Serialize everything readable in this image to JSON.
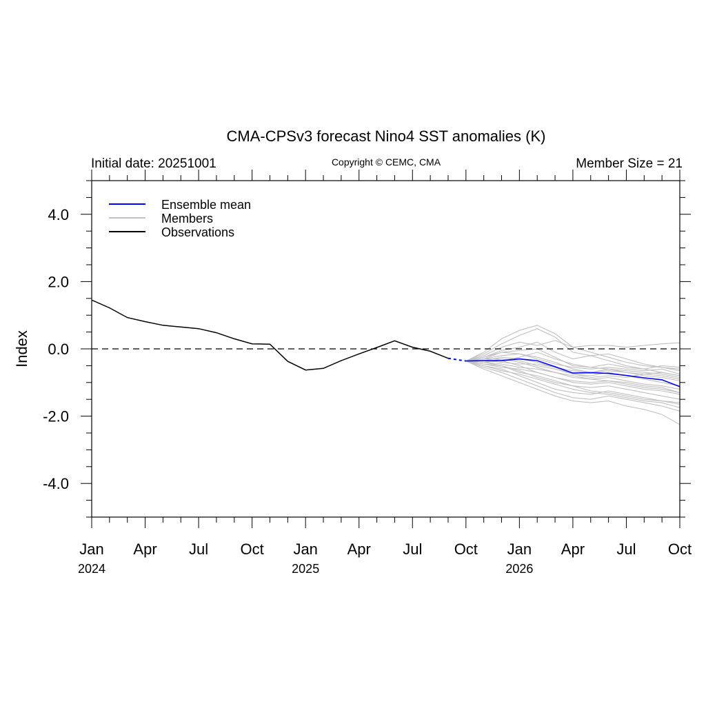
{
  "chart_data": {
    "type": "line",
    "title": "CMA-CPSv3 forecast Nino4 SST anomalies (K)",
    "left_subtitle": "Initial date: 20251001",
    "center_subtitle": "Copyright © CEMC, CMA",
    "right_subtitle": "Member Size = 21",
    "ylabel": "Index",
    "xlabel": "",
    "ylim": [
      -5,
      5
    ],
    "xlim": [
      0,
      33
    ],
    "y_ticks": [
      {
        "value": 4,
        "label": "4.0"
      },
      {
        "value": 2,
        "label": "2.0"
      },
      {
        "value": 0,
        "label": "0.0"
      },
      {
        "value": -2,
        "label": "-2.0"
      },
      {
        "value": -4,
        "label": "-4.0"
      }
    ],
    "x_ticks": [
      {
        "month": 0,
        "label": "Jan"
      },
      {
        "month": 3,
        "label": "Apr"
      },
      {
        "month": 6,
        "label": "Jul"
      },
      {
        "month": 9,
        "label": "Oct"
      },
      {
        "month": 12,
        "label": "Jan"
      },
      {
        "month": 15,
        "label": "Apr"
      },
      {
        "month": 18,
        "label": "Jul"
      },
      {
        "month": 21,
        "label": "Oct"
      },
      {
        "month": 24,
        "label": "Jan"
      },
      {
        "month": 27,
        "label": "Apr"
      },
      {
        "month": 30,
        "label": "Jul"
      },
      {
        "month": 33,
        "label": "Oct"
      }
    ],
    "year_labels": [
      {
        "month": 0,
        "label": "2024"
      },
      {
        "month": 12,
        "label": "2025"
      },
      {
        "month": 24,
        "label": "2026"
      }
    ],
    "zero_line": {
      "value": 0,
      "style": "dashed"
    },
    "legend": {
      "placement": "top-left",
      "items": [
        {
          "label": "Ensemble mean",
          "color": "#0000ff"
        },
        {
          "label": "Members",
          "color": "#c0c0c0"
        },
        {
          "label": "Observations",
          "color": "#000000"
        }
      ]
    },
    "observations": {
      "name": "Observations",
      "color": "#000000",
      "x": [
        0,
        1,
        2,
        3,
        4,
        5,
        6,
        7,
        8,
        9,
        10,
        11,
        12,
        13,
        14,
        15,
        16,
        17,
        18,
        19,
        20
      ],
      "y": [
        1.45,
        1.22,
        0.93,
        0.81,
        0.7,
        0.65,
        0.6,
        0.48,
        0.3,
        0.15,
        0.14,
        -0.37,
        -0.63,
        -0.58,
        -0.35,
        -0.15,
        0.04,
        0.24,
        0.05,
        -0.07,
        -0.28
      ]
    },
    "observation_link": {
      "color": "#0000ff",
      "style": "dashed",
      "x": [
        20,
        21
      ],
      "y": [
        -0.28,
        -0.36
      ]
    },
    "ensemble_mean": {
      "name": "Ensemble mean",
      "color": "#0000ff",
      "x": [
        21,
        22,
        23,
        24,
        25,
        26,
        27,
        28,
        29,
        30,
        31,
        32,
        33
      ],
      "y": [
        -0.36,
        -0.35,
        -0.35,
        -0.3,
        -0.35,
        -0.53,
        -0.72,
        -0.71,
        -0.73,
        -0.79,
        -0.86,
        -0.92,
        -1.12
      ]
    },
    "members": {
      "name": "Members",
      "color": "#c0c0c0",
      "x": [
        21,
        22,
        23,
        24,
        25,
        26,
        27,
        28,
        29,
        30,
        31,
        32,
        33
      ],
      "series": [
        [
          -0.36,
          -0.1,
          0.3,
          0.55,
          0.7,
          0.45,
          0.05,
          -0.1,
          -0.25,
          -0.4,
          -0.5,
          -0.55,
          -0.65
        ],
        [
          -0.36,
          -0.15,
          0.15,
          0.4,
          0.6,
          0.35,
          -0.1,
          -0.2,
          -0.35,
          -0.5,
          -0.6,
          -0.7,
          -0.8
        ],
        [
          -0.36,
          -0.2,
          0.05,
          0.2,
          0.1,
          0.25,
          0.05,
          0.1,
          0.1,
          0.05,
          0.1,
          0.15,
          0.18
        ],
        [
          -0.36,
          -0.25,
          -0.05,
          0.05,
          0.2,
          -0.1,
          -0.3,
          -0.2,
          -0.15,
          -0.3,
          -0.45,
          -0.55,
          -0.6
        ],
        [
          -0.36,
          -0.3,
          -0.1,
          -0.05,
          0.0,
          -0.25,
          -0.5,
          -0.55,
          -0.45,
          -0.55,
          -0.6,
          -0.5,
          -0.55
        ],
        [
          -0.36,
          -0.3,
          -0.2,
          -0.15,
          -0.25,
          -0.4,
          -0.6,
          -0.7,
          -0.65,
          -0.7,
          -0.75,
          -0.8,
          -0.9
        ],
        [
          -0.36,
          -0.35,
          -0.25,
          -0.3,
          -0.4,
          -0.55,
          -0.75,
          -0.8,
          -0.7,
          -0.8,
          -0.9,
          -1.0,
          -1.1
        ],
        [
          -0.36,
          -0.4,
          -0.3,
          -0.4,
          -0.55,
          -0.7,
          -0.85,
          -0.9,
          -0.85,
          -0.95,
          -1.05,
          -1.1,
          -1.2
        ],
        [
          -0.36,
          -0.4,
          -0.35,
          -0.5,
          -0.7,
          -0.85,
          -1.0,
          -1.05,
          -1.0,
          -1.1,
          -1.2,
          -1.25,
          -1.35
        ],
        [
          -0.36,
          -0.45,
          -0.5,
          -0.65,
          -0.85,
          -1.0,
          -1.1,
          -1.15,
          -1.1,
          -1.2,
          -1.3,
          -1.4,
          -1.5
        ],
        [
          -0.36,
          -0.5,
          -0.6,
          -0.8,
          -1.0,
          -1.2,
          -1.3,
          -1.35,
          -1.25,
          -1.35,
          -1.45,
          -1.55,
          -1.65
        ],
        [
          -0.36,
          -0.55,
          -0.7,
          -0.9,
          -1.1,
          -1.3,
          -1.45,
          -1.5,
          -1.4,
          -1.5,
          -1.6,
          -1.7,
          -1.85
        ],
        [
          -0.36,
          -0.6,
          -0.8,
          -1.0,
          -1.2,
          -1.4,
          -1.55,
          -1.6,
          -1.55,
          -1.7,
          -1.8,
          -1.95,
          -2.25
        ],
        [
          -0.36,
          -0.5,
          -0.65,
          -0.75,
          -0.9,
          -1.05,
          -1.2,
          -1.3,
          -1.35,
          -1.45,
          -1.55,
          -1.6,
          -1.75
        ],
        [
          -0.36,
          -0.45,
          -0.55,
          -0.6,
          -0.7,
          -0.85,
          -0.95,
          -1.0,
          -0.95,
          -1.0,
          -1.1,
          -1.15,
          -1.3
        ],
        [
          -0.36,
          -0.4,
          -0.45,
          -0.55,
          -0.6,
          -0.7,
          -0.8,
          -0.9,
          -0.95,
          -1.05,
          -1.15,
          -1.2,
          -1.3
        ],
        [
          -0.36,
          -0.35,
          -0.4,
          -0.45,
          -0.45,
          -0.55,
          -0.65,
          -0.7,
          -0.6,
          -0.7,
          -0.8,
          -0.85,
          -0.95
        ],
        [
          -0.36,
          -0.3,
          -0.3,
          -0.35,
          -0.5,
          -0.6,
          -0.75,
          -0.85,
          -0.8,
          -0.85,
          -0.75,
          -0.7,
          -0.8
        ],
        [
          -0.36,
          -0.4,
          -0.5,
          -0.7,
          -0.8,
          -0.95,
          -1.1,
          -1.25,
          -1.3,
          -1.4,
          -1.5,
          -1.55,
          -1.6
        ],
        [
          -0.36,
          -0.25,
          -0.1,
          -0.15,
          -0.3,
          -0.45,
          -0.55,
          -0.6,
          -0.55,
          -0.6,
          -0.65,
          -0.6,
          -0.75
        ],
        [
          -0.36,
          -0.35,
          -0.35,
          -0.25,
          -0.1,
          -0.3,
          -0.45,
          -0.55,
          -0.6,
          -0.65,
          -0.7,
          -0.75,
          -0.85
        ]
      ]
    }
  }
}
